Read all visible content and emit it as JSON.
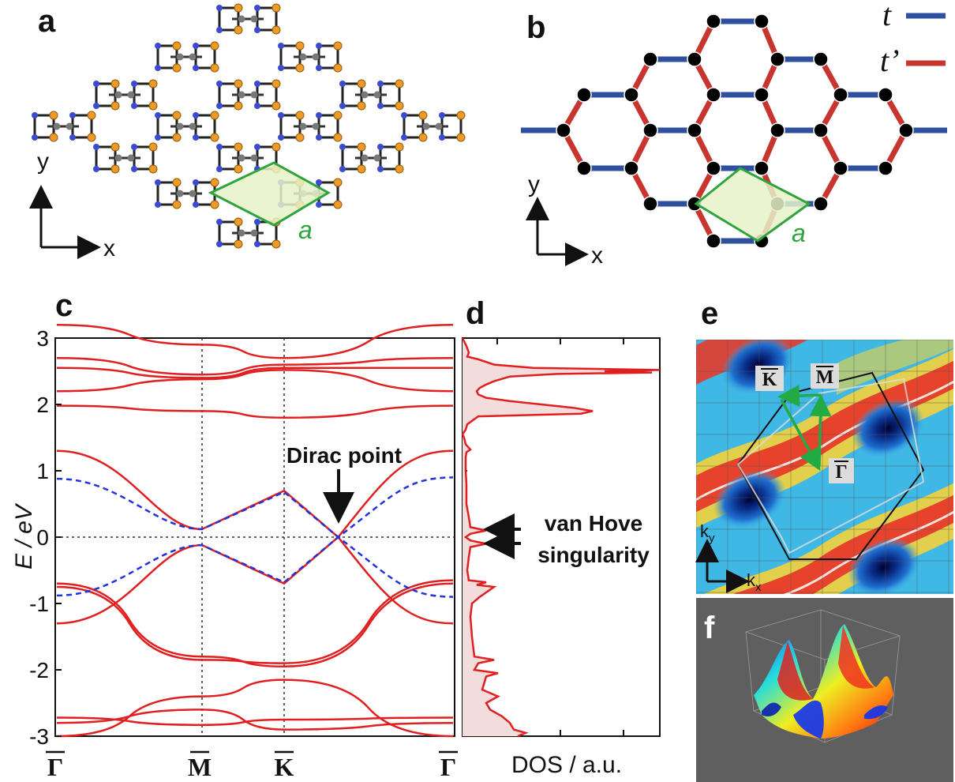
{
  "panels": {
    "a": {
      "letter": "a",
      "axis_x": "x",
      "axis_y": "y",
      "lattice_label": "a"
    },
    "b": {
      "letter": "b",
      "axis_x": "x",
      "axis_y": "y",
      "lattice_label": "a",
      "legend": [
        {
          "label": "t",
          "color": "#2f4f9f"
        },
        {
          "label": "t’",
          "color": "#c8342e"
        }
      ]
    },
    "c": {
      "letter": "c",
      "ylabel": "E / eV",
      "kpoints": [
        "Γ",
        "M",
        "K",
        "Γ"
      ],
      "annotation": "Dirac point"
    },
    "d": {
      "letter": "d",
      "xlabel": "DOS / a.u.",
      "annotation_line1": "van Hove",
      "annotation_line2": "singularity"
    },
    "e": {
      "letter": "e",
      "labels": [
        "K",
        "M",
        "Γ"
      ],
      "kx": "k",
      "kx_sub": "x",
      "ky": "k",
      "ky_sub": "y"
    },
    "f": {
      "letter": "f"
    }
  },
  "colors": {
    "band": "#e02020",
    "tb_fit": "#2233dd",
    "bond_t": "#2f4f9f",
    "bond_tp": "#c8342e",
    "cell": "#2fa43c",
    "cell_fill": "#e6f2c8"
  },
  "chart_data": [
    {
      "type": "line",
      "title": "",
      "xlabel": "",
      "ylabel": "E / eV",
      "x": [
        "Γ",
        "M",
        "K",
        "Γ"
      ],
      "ylim": [
        -3,
        3
      ],
      "yticks": [
        3,
        2,
        1,
        0,
        -1,
        -2,
        -3
      ],
      "series": [
        {
          "values": [
            0.88,
            0.12,
            0.68,
            -0.9
          ]
        },
        {
          "values": [
            -0.88,
            -0.12,
            -0.68,
            0.9
          ]
        }
      ],
      "dirac_point": {
        "k_fraction": 0.73,
        "E": 0.0
      }
    },
    {
      "type": "area",
      "title": "",
      "xlabel": "DOS / a.u.",
      "ylabel": "",
      "ylim": [
        -3,
        3
      ],
      "peaks_E": [
        2.5,
        1.88,
        0.1,
        -0.1,
        -0.7,
        -1.85,
        -2.0
      ]
    }
  ]
}
